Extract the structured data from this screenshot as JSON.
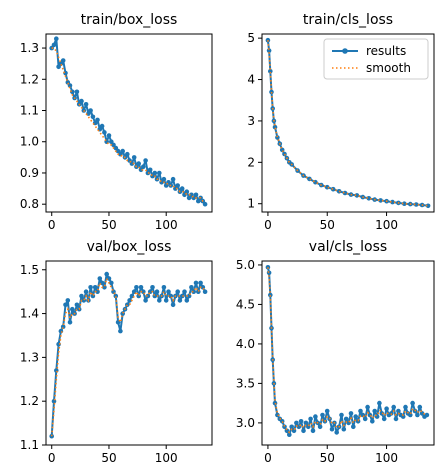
{
  "colors": {
    "results": "#1f77b4",
    "smooth": "#ff7f0e"
  },
  "legend": {
    "location": "upper-right",
    "results_label": "results",
    "smooth_label": "smooth"
  },
  "chart_data": [
    {
      "type": "line",
      "title": "train/box_loss",
      "xlim": [
        -5,
        140
      ],
      "ylim": [
        0.775,
        1.345
      ],
      "xticks": [
        0,
        50,
        100
      ],
      "yticks": [
        0.8,
        0.9,
        1.0,
        1.1,
        1.2,
        1.3
      ],
      "ytick_labels": [
        "0.8",
        "0.9",
        "1.0",
        "1.1",
        "1.2",
        "1.3"
      ],
      "grid": false,
      "series": [
        {
          "name": "results",
          "x": [
            0,
            2,
            4,
            6,
            8,
            10,
            12,
            14,
            16,
            18,
            20,
            22,
            24,
            26,
            28,
            30,
            32,
            34,
            36,
            38,
            40,
            42,
            44,
            46,
            48,
            50,
            52,
            54,
            56,
            58,
            60,
            62,
            64,
            66,
            68,
            70,
            72,
            74,
            76,
            78,
            80,
            82,
            84,
            86,
            88,
            90,
            92,
            94,
            96,
            98,
            100,
            102,
            104,
            106,
            108,
            110,
            112,
            114,
            116,
            118,
            120,
            122,
            124,
            126,
            128,
            130,
            132,
            134
          ],
          "y": [
            1.3,
            1.31,
            1.33,
            1.24,
            1.25,
            1.26,
            1.22,
            1.19,
            1.18,
            1.16,
            1.14,
            1.16,
            1.12,
            1.13,
            1.1,
            1.12,
            1.09,
            1.1,
            1.08,
            1.06,
            1.07,
            1.04,
            1.05,
            1.03,
            1.0,
            1.02,
            1.0,
            0.99,
            0.98,
            0.97,
            0.96,
            0.97,
            0.95,
            0.96,
            0.94,
            0.93,
            0.95,
            0.92,
            0.93,
            0.91,
            0.92,
            0.94,
            0.9,
            0.91,
            0.89,
            0.9,
            0.88,
            0.9,
            0.87,
            0.88,
            0.86,
            0.87,
            0.86,
            0.88,
            0.85,
            0.86,
            0.84,
            0.85,
            0.83,
            0.84,
            0.82,
            0.83,
            0.82,
            0.83,
            0.81,
            0.82,
            0.81,
            0.8
          ]
        },
        {
          "name": "smooth",
          "x": [
            0,
            2,
            4,
            6,
            8,
            10,
            12,
            14,
            16,
            18,
            20,
            22,
            24,
            26,
            28,
            30,
            32,
            34,
            36,
            38,
            40,
            42,
            44,
            46,
            48,
            50,
            52,
            54,
            56,
            58,
            60,
            62,
            64,
            66,
            68,
            70,
            72,
            74,
            76,
            78,
            80,
            82,
            84,
            86,
            88,
            90,
            92,
            94,
            96,
            98,
            100,
            102,
            104,
            106,
            108,
            110,
            112,
            114,
            116,
            118,
            120,
            122,
            124,
            126,
            128,
            130,
            132,
            134
          ],
          "y": [
            1.3,
            1.3,
            1.29,
            1.27,
            1.25,
            1.23,
            1.21,
            1.19,
            1.17,
            1.15,
            1.14,
            1.13,
            1.12,
            1.11,
            1.1,
            1.09,
            1.08,
            1.07,
            1.06,
            1.05,
            1.04,
            1.03,
            1.02,
            1.01,
            1.0,
            0.99,
            0.99,
            0.98,
            0.97,
            0.96,
            0.96,
            0.95,
            0.95,
            0.94,
            0.94,
            0.93,
            0.93,
            0.92,
            0.92,
            0.91,
            0.91,
            0.91,
            0.9,
            0.9,
            0.89,
            0.89,
            0.88,
            0.88,
            0.87,
            0.87,
            0.87,
            0.86,
            0.86,
            0.86,
            0.85,
            0.85,
            0.84,
            0.84,
            0.84,
            0.83,
            0.83,
            0.83,
            0.82,
            0.82,
            0.82,
            0.82,
            0.81,
            0.81
          ]
        }
      ]
    },
    {
      "type": "line",
      "title": "train/cls_loss",
      "xlim": [
        -5,
        140
      ],
      "ylim": [
        0.8,
        5.1
      ],
      "xticks": [
        0,
        50,
        100
      ],
      "yticks": [
        1,
        2,
        3,
        4,
        5
      ],
      "ytick_labels": [
        "1",
        "2",
        "3",
        "4",
        "5"
      ],
      "grid": false,
      "legend": true,
      "series": [
        {
          "name": "results",
          "x": [
            0,
            1,
            2,
            3,
            4,
            5,
            6,
            8,
            10,
            12,
            14,
            16,
            18,
            20,
            25,
            30,
            35,
            40,
            45,
            50,
            55,
            60,
            65,
            70,
            75,
            80,
            85,
            90,
            95,
            100,
            105,
            110,
            115,
            120,
            125,
            130,
            135
          ],
          "y": [
            4.95,
            4.7,
            4.2,
            3.7,
            3.3,
            3.0,
            2.85,
            2.6,
            2.45,
            2.3,
            2.2,
            2.1,
            2.0,
            1.95,
            1.8,
            1.68,
            1.6,
            1.52,
            1.45,
            1.4,
            1.35,
            1.3,
            1.26,
            1.22,
            1.2,
            1.16,
            1.13,
            1.1,
            1.08,
            1.06,
            1.04,
            1.02,
            1.0,
            0.99,
            0.98,
            0.97,
            0.95
          ]
        },
        {
          "name": "smooth",
          "x": [
            0,
            1,
            2,
            3,
            4,
            5,
            6,
            8,
            10,
            12,
            14,
            16,
            18,
            20,
            25,
            30,
            35,
            40,
            45,
            50,
            55,
            60,
            65,
            70,
            75,
            80,
            85,
            90,
            95,
            100,
            105,
            110,
            115,
            120,
            125,
            130,
            135
          ],
          "y": [
            4.95,
            4.65,
            4.2,
            3.72,
            3.32,
            3.02,
            2.86,
            2.6,
            2.45,
            2.3,
            2.2,
            2.1,
            2.0,
            1.95,
            1.8,
            1.68,
            1.6,
            1.52,
            1.45,
            1.4,
            1.35,
            1.3,
            1.26,
            1.22,
            1.2,
            1.16,
            1.13,
            1.1,
            1.08,
            1.06,
            1.04,
            1.02,
            1.0,
            0.99,
            0.98,
            0.97,
            0.95
          ]
        }
      ]
    },
    {
      "type": "line",
      "title": "val/box_loss",
      "xlim": [
        -5,
        140
      ],
      "ylim": [
        1.1,
        1.52
      ],
      "xticks": [
        0,
        50,
        100
      ],
      "yticks": [
        1.1,
        1.2,
        1.3,
        1.4,
        1.5
      ],
      "ytick_labels": [
        "1.1",
        "1.2",
        "1.3",
        "1.4",
        "1.5"
      ],
      "grid": false,
      "series": [
        {
          "name": "results",
          "x": [
            0,
            2,
            4,
            6,
            8,
            10,
            12,
            14,
            16,
            18,
            20,
            22,
            24,
            26,
            28,
            30,
            32,
            34,
            36,
            38,
            40,
            42,
            44,
            46,
            48,
            50,
            52,
            54,
            56,
            58,
            60,
            62,
            64,
            66,
            68,
            70,
            72,
            74,
            76,
            78,
            80,
            82,
            84,
            86,
            88,
            90,
            92,
            94,
            96,
            98,
            100,
            102,
            104,
            106,
            108,
            110,
            112,
            114,
            116,
            118,
            120,
            122,
            124,
            126,
            128,
            130,
            132,
            134
          ],
          "y": [
            1.12,
            1.2,
            1.27,
            1.33,
            1.36,
            1.37,
            1.42,
            1.43,
            1.38,
            1.41,
            1.4,
            1.42,
            1.41,
            1.44,
            1.43,
            1.45,
            1.43,
            1.46,
            1.44,
            1.46,
            1.45,
            1.48,
            1.47,
            1.46,
            1.49,
            1.48,
            1.47,
            1.45,
            1.44,
            1.38,
            1.36,
            1.4,
            1.41,
            1.42,
            1.43,
            1.44,
            1.45,
            1.46,
            1.44,
            1.46,
            1.45,
            1.43,
            1.44,
            1.45,
            1.46,
            1.44,
            1.45,
            1.43,
            1.44,
            1.46,
            1.43,
            1.45,
            1.44,
            1.42,
            1.44,
            1.45,
            1.43,
            1.44,
            1.45,
            1.43,
            1.44,
            1.46,
            1.45,
            1.47,
            1.45,
            1.47,
            1.46,
            1.45
          ]
        },
        {
          "name": "smooth",
          "x": [
            0,
            2,
            4,
            6,
            8,
            10,
            12,
            14,
            16,
            18,
            20,
            22,
            24,
            26,
            28,
            30,
            32,
            34,
            36,
            38,
            40,
            42,
            44,
            46,
            48,
            50,
            52,
            54,
            56,
            58,
            60,
            62,
            64,
            66,
            68,
            70,
            72,
            74,
            76,
            78,
            80,
            82,
            84,
            86,
            88,
            90,
            92,
            94,
            96,
            98,
            100,
            102,
            104,
            106,
            108,
            110,
            112,
            114,
            116,
            118,
            120,
            122,
            124,
            126,
            128,
            130,
            132,
            134
          ],
          "y": [
            1.12,
            1.18,
            1.25,
            1.31,
            1.35,
            1.37,
            1.4,
            1.41,
            1.39,
            1.4,
            1.4,
            1.41,
            1.41,
            1.43,
            1.43,
            1.44,
            1.43,
            1.45,
            1.44,
            1.45,
            1.45,
            1.47,
            1.46,
            1.46,
            1.48,
            1.47,
            1.46,
            1.45,
            1.44,
            1.39,
            1.38,
            1.4,
            1.41,
            1.42,
            1.42,
            1.43,
            1.44,
            1.45,
            1.44,
            1.45,
            1.45,
            1.44,
            1.44,
            1.45,
            1.45,
            1.44,
            1.44,
            1.44,
            1.44,
            1.45,
            1.44,
            1.44,
            1.44,
            1.43,
            1.44,
            1.44,
            1.44,
            1.44,
            1.44,
            1.44,
            1.44,
            1.45,
            1.45,
            1.46,
            1.45,
            1.46,
            1.46,
            1.45
          ]
        }
      ]
    },
    {
      "type": "line",
      "title": "val/cls_loss",
      "xlim": [
        -5,
        140
      ],
      "ylim": [
        2.72,
        5.05
      ],
      "xticks": [
        0,
        50,
        100
      ],
      "yticks": [
        3.0,
        3.5,
        4.0,
        4.5,
        5.0
      ],
      "ytick_labels": [
        "3.0",
        "3.5",
        "4.0",
        "4.5",
        "5.0"
      ],
      "grid": false,
      "series": [
        {
          "name": "results",
          "x": [
            0,
            1,
            2,
            3,
            4,
            5,
            6,
            8,
            10,
            12,
            14,
            16,
            18,
            20,
            22,
            24,
            26,
            28,
            30,
            32,
            34,
            36,
            38,
            40,
            42,
            44,
            46,
            48,
            50,
            52,
            54,
            56,
            58,
            60,
            62,
            64,
            66,
            68,
            70,
            72,
            74,
            76,
            78,
            80,
            82,
            84,
            86,
            88,
            90,
            92,
            94,
            96,
            98,
            100,
            102,
            104,
            106,
            108,
            110,
            112,
            114,
            116,
            118,
            120,
            122,
            124,
            126,
            128,
            130,
            132,
            134
          ],
          "y": [
            4.97,
            4.9,
            4.62,
            4.2,
            3.8,
            3.5,
            3.25,
            3.1,
            3.05,
            3.02,
            2.95,
            2.9,
            2.85,
            2.95,
            2.9,
            3.0,
            2.95,
            3.02,
            2.9,
            3.0,
            2.95,
            3.05,
            2.9,
            3.08,
            3.0,
            2.95,
            3.1,
            3.02,
            3.15,
            3.05,
            2.92,
            3.0,
            2.88,
            2.95,
            3.1,
            2.92,
            3.05,
            3.0,
            3.12,
            2.95,
            3.08,
            3.02,
            3.15,
            3.1,
            3.05,
            3.2,
            3.1,
            3.02,
            3.15,
            3.08,
            3.25,
            3.12,
            3.05,
            3.18,
            3.1,
            3.12,
            3.2,
            3.05,
            3.15,
            3.1,
            3.08,
            3.2,
            3.12,
            3.1,
            3.25,
            3.15,
            3.1,
            3.2,
            3.12,
            3.08,
            3.1
          ]
        },
        {
          "name": "smooth",
          "x": [
            0,
            1,
            2,
            3,
            4,
            5,
            6,
            8,
            10,
            12,
            14,
            16,
            18,
            20,
            22,
            24,
            26,
            28,
            30,
            32,
            34,
            36,
            38,
            40,
            42,
            44,
            46,
            48,
            50,
            52,
            54,
            56,
            58,
            60,
            62,
            64,
            66,
            68,
            70,
            72,
            74,
            76,
            78,
            80,
            82,
            84,
            86,
            88,
            90,
            92,
            94,
            96,
            98,
            100,
            102,
            104,
            106,
            108,
            110,
            112,
            114,
            116,
            118,
            120,
            122,
            124,
            126,
            128,
            130,
            132,
            134
          ],
          "y": [
            4.97,
            4.85,
            4.6,
            4.2,
            3.82,
            3.52,
            3.28,
            3.12,
            3.06,
            3.02,
            2.96,
            2.91,
            2.88,
            2.92,
            2.91,
            2.96,
            2.95,
            2.98,
            2.94,
            2.97,
            2.96,
            3.0,
            2.95,
            3.02,
            3.0,
            2.98,
            3.04,
            3.02,
            3.08,
            3.06,
            2.99,
            3.0,
            2.94,
            2.95,
            3.03,
            2.97,
            3.01,
            3.0,
            3.06,
            3.0,
            3.04,
            3.03,
            3.09,
            3.09,
            3.07,
            3.13,
            3.11,
            3.06,
            3.1,
            3.09,
            3.16,
            3.14,
            3.09,
            3.13,
            3.11,
            3.11,
            3.15,
            3.1,
            3.12,
            3.11,
            3.1,
            3.15,
            3.13,
            3.11,
            3.18,
            3.16,
            3.13,
            3.16,
            3.14,
            3.11,
            3.1
          ]
        }
      ]
    }
  ]
}
